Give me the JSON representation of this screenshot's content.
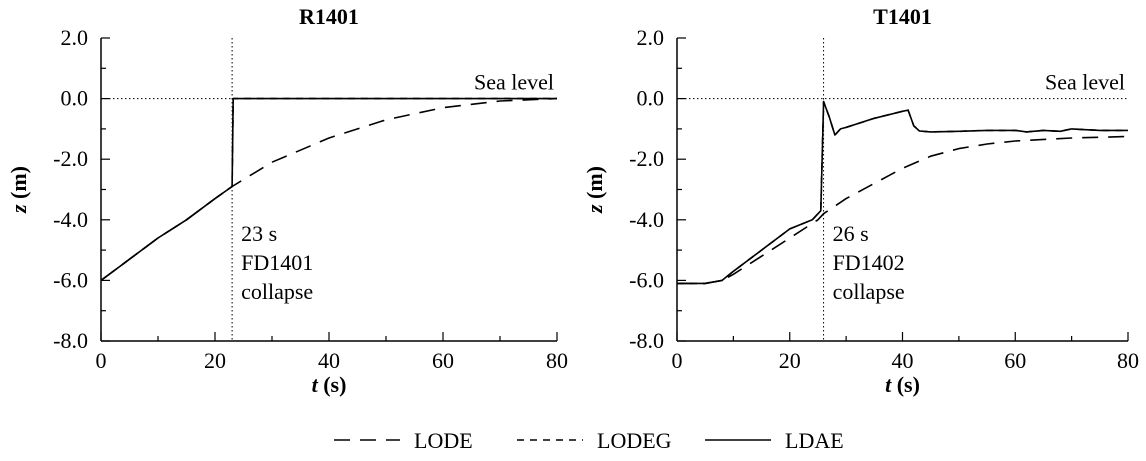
{
  "chart_data": [
    {
      "type": "line",
      "title": "R1401",
      "xlabel": {
        "var": "t",
        "unit": " (s)"
      },
      "ylabel": {
        "var": "z",
        "unit": " (m)"
      },
      "xlim": [
        0,
        80
      ],
      "ylim": [
        -8,
        2
      ],
      "xticks": [
        "0",
        "20",
        "40",
        "60",
        "80"
      ],
      "yticks": [
        "2.0",
        "0.0",
        "-2.0",
        "-4.0",
        "-6.0",
        "-8.0"
      ],
      "grid": false,
      "sea_level": {
        "y": 0,
        "label": "Sea level"
      },
      "event_line": {
        "x": 23,
        "label_lines": [
          "23 s",
          "FD1401",
          "collapse"
        ]
      },
      "series": [
        {
          "name": "LODE",
          "style": "long-dash",
          "x": [
            0,
            5,
            10,
            15,
            20,
            23,
            30,
            40,
            50,
            60,
            70,
            80
          ],
          "y": [
            -6.0,
            -5.3,
            -4.6,
            -4.0,
            -3.3,
            -2.9,
            -2.1,
            -1.3,
            -0.7,
            -0.3,
            -0.08,
            0.0
          ]
        },
        {
          "name": "LODEG",
          "style": "short-dash",
          "x": [
            0,
            5,
            10,
            15,
            20,
            23,
            23.2,
            80
          ],
          "y": [
            -6.0,
            -5.3,
            -4.6,
            -4.0,
            -3.3,
            -2.9,
            0.0,
            0.0
          ]
        },
        {
          "name": "LDAE",
          "style": "solid",
          "x": [
            0,
            5,
            10,
            15,
            20,
            23,
            23.2,
            80
          ],
          "y": [
            -6.0,
            -5.3,
            -4.6,
            -4.0,
            -3.3,
            -2.9,
            0.0,
            0.0
          ]
        }
      ]
    },
    {
      "type": "line",
      "title": "T1401",
      "xlabel": {
        "var": "t",
        "unit": " (s)"
      },
      "ylabel": {
        "var": "z",
        "unit": " (m)"
      },
      "xlim": [
        0,
        80
      ],
      "ylim": [
        -8,
        2
      ],
      "xticks": [
        "0",
        "20",
        "40",
        "60",
        "80"
      ],
      "yticks": [
        "2.0",
        "0.0",
        "-2.0",
        "-4.0",
        "-6.0",
        "-8.0"
      ],
      "grid": false,
      "sea_level": {
        "y": 0,
        "label": "Sea level"
      },
      "event_line": {
        "x": 26,
        "label_lines": [
          "26 s",
          "FD1402",
          "collapse"
        ]
      },
      "series": [
        {
          "name": "LODE",
          "style": "long-dash",
          "x": [
            0,
            5,
            8,
            10,
            15,
            20,
            25,
            26,
            30,
            35,
            40,
            45,
            50,
            55,
            60,
            70,
            80
          ],
          "y": [
            -6.1,
            -6.1,
            -6.0,
            -5.8,
            -5.2,
            -4.6,
            -4.0,
            -3.8,
            -3.3,
            -2.8,
            -2.3,
            -1.9,
            -1.65,
            -1.5,
            -1.4,
            -1.3,
            -1.25
          ]
        },
        {
          "name": "LODEG",
          "style": "short-dash",
          "x": [
            0,
            5,
            8,
            10,
            15,
            20,
            24,
            25.5,
            26,
            27,
            28,
            29,
            30,
            35,
            40,
            41,
            42,
            43,
            45,
            50,
            55,
            60,
            62,
            65,
            68,
            70,
            75,
            80
          ],
          "y": [
            -6.1,
            -6.1,
            -6.0,
            -5.7,
            -5.0,
            -4.3,
            -4.0,
            -3.7,
            -0.1,
            -0.6,
            -1.2,
            -1.0,
            -0.95,
            -0.65,
            -0.42,
            -0.38,
            -0.9,
            -1.07,
            -1.1,
            -1.08,
            -1.05,
            -1.05,
            -1.1,
            -1.05,
            -1.08,
            -1.0,
            -1.05,
            -1.05
          ]
        },
        {
          "name": "LDAE",
          "style": "solid",
          "x": [
            0,
            5,
            8,
            10,
            15,
            20,
            24,
            25.5,
            26,
            27,
            28,
            29,
            30,
            35,
            40,
            41,
            42,
            43,
            45,
            50,
            55,
            60,
            62,
            65,
            68,
            70,
            75,
            80
          ],
          "y": [
            -6.1,
            -6.1,
            -6.0,
            -5.7,
            -5.0,
            -4.3,
            -4.0,
            -3.7,
            -0.1,
            -0.6,
            -1.2,
            -1.0,
            -0.95,
            -0.65,
            -0.42,
            -0.38,
            -0.9,
            -1.07,
            -1.1,
            -1.08,
            -1.05,
            -1.05,
            -1.1,
            -1.05,
            -1.08,
            -1.0,
            -1.05,
            -1.05
          ]
        }
      ]
    }
  ],
  "legend": {
    "placement": "bottom-center",
    "items": [
      {
        "label": "LODE",
        "style": "long-dash"
      },
      {
        "label": "LODEG",
        "style": "short-dash"
      },
      {
        "label": "LDAE",
        "style": "solid"
      }
    ]
  }
}
